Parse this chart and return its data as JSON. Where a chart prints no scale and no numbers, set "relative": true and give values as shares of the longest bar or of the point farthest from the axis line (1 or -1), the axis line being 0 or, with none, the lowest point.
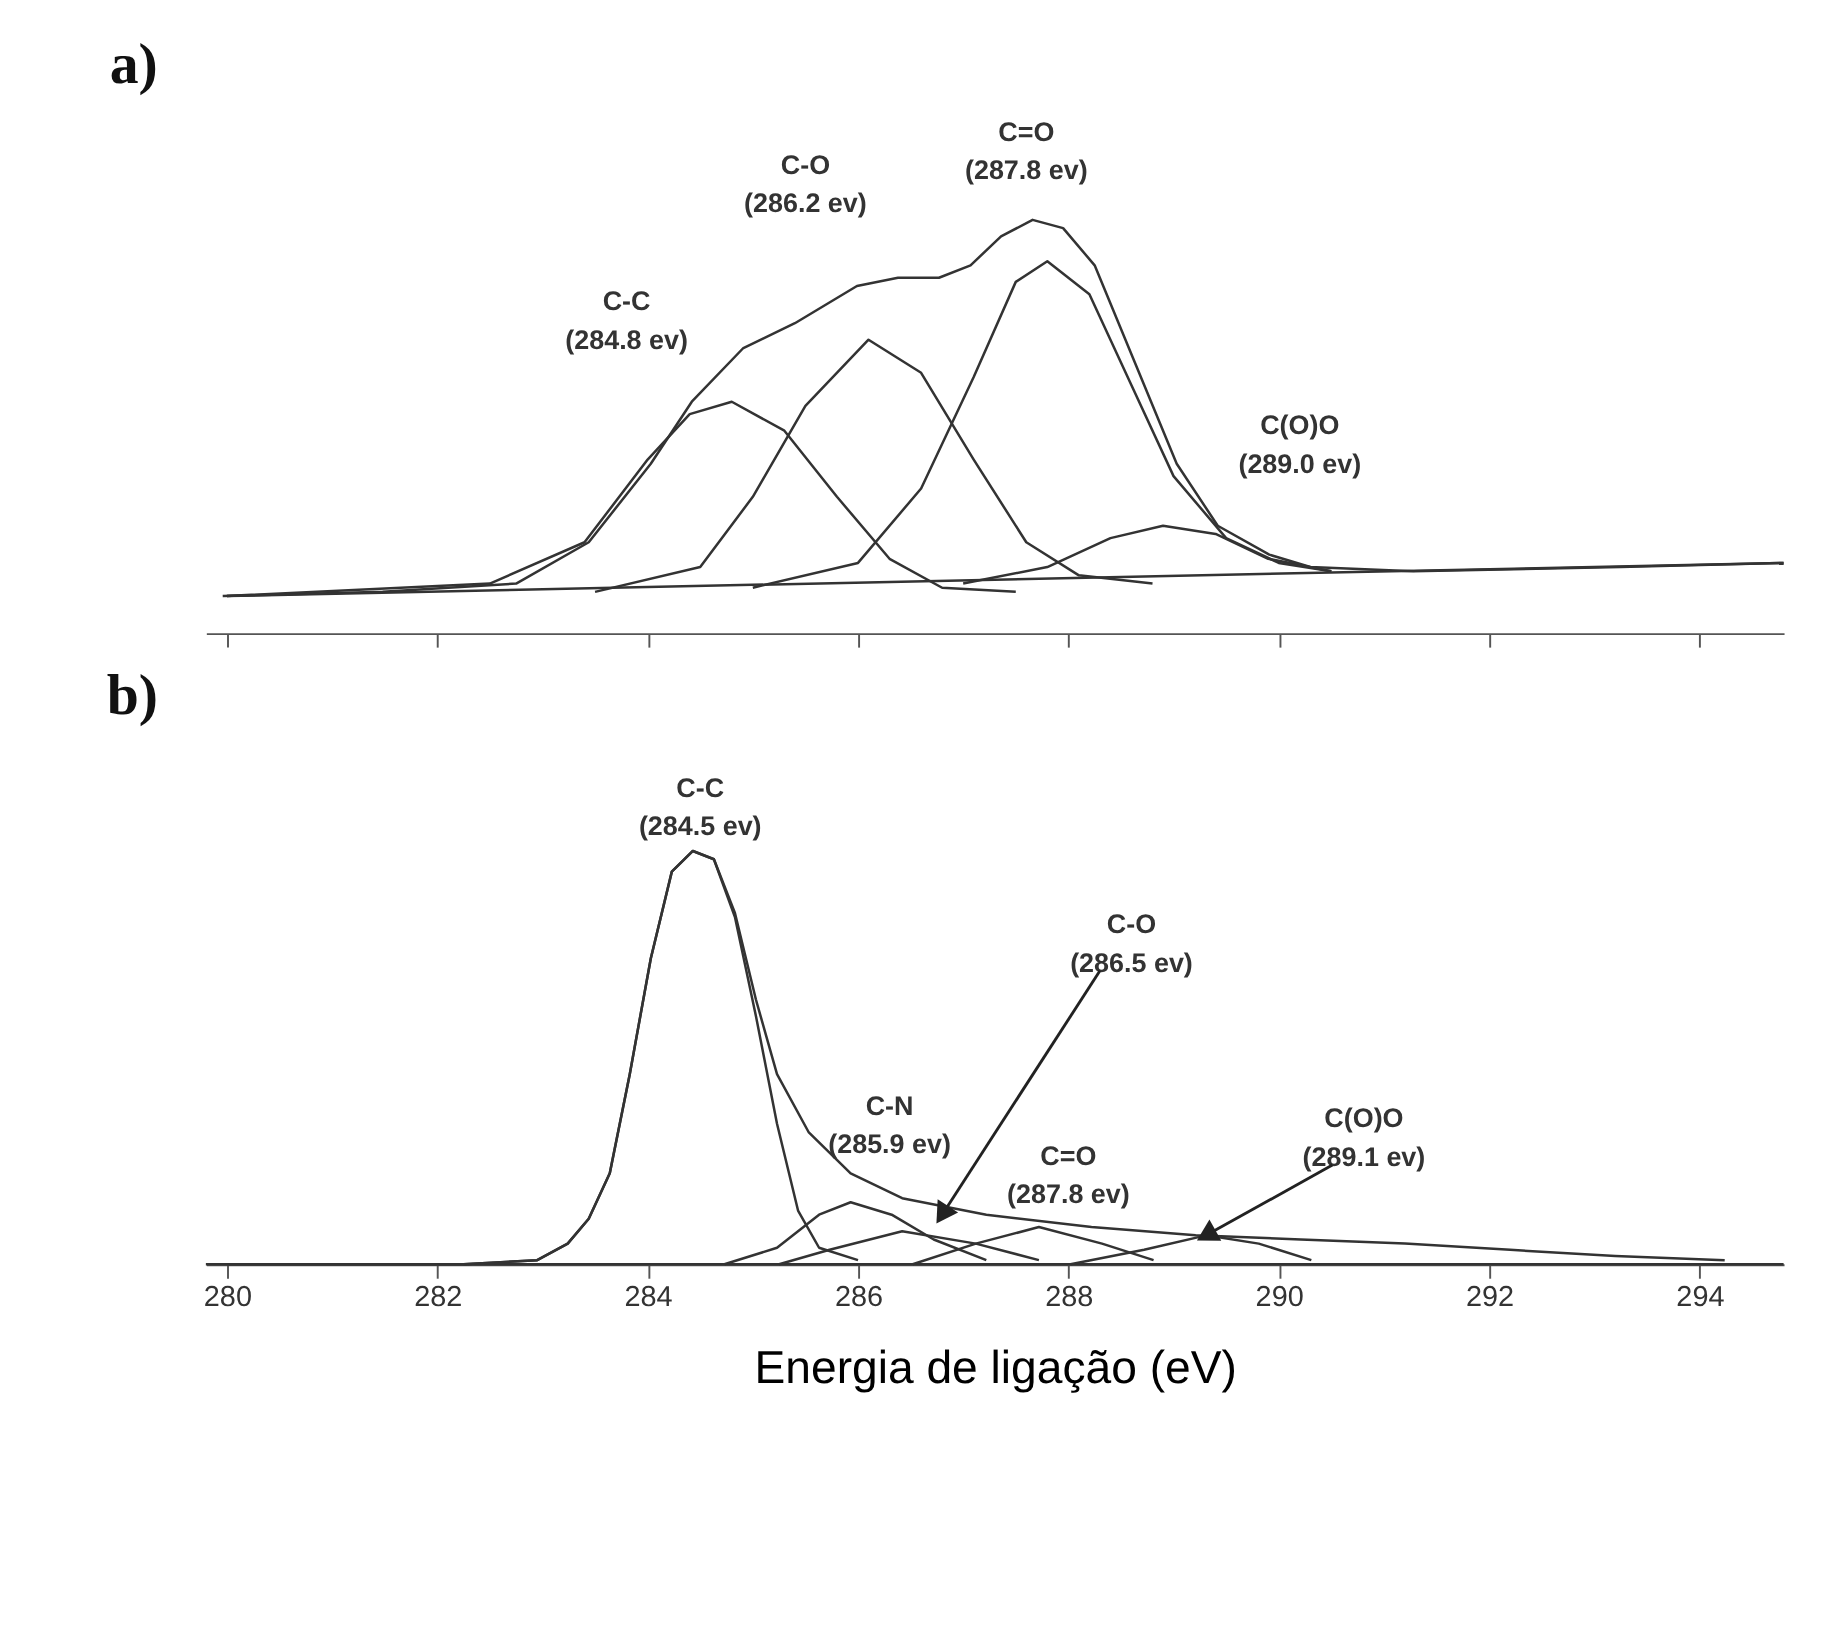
{
  "chart_data": [
    {
      "type": "line",
      "title": "a)",
      "relative": true,
      "grid": false,
      "tick_labels": false,
      "xlim": [
        279.8,
        294.8
      ],
      "xticks": [
        {
          "value": 280,
          "label": null
        },
        {
          "value": 282,
          "label": null
        },
        {
          "value": 284,
          "label": null
        },
        {
          "value": 286,
          "label": null
        },
        {
          "value": 288,
          "label": null
        },
        {
          "value": 290,
          "label": null
        },
        {
          "value": 292,
          "label": null
        },
        {
          "value": 294,
          "label": null
        }
      ],
      "series": [
        {
          "color": "#333333",
          "x": [
            279.96,
            281.48,
            282.75,
            283.44,
            284.03,
            284.42,
            284.91,
            285.4,
            285.99,
            286.38,
            286.77,
            287.07,
            287.36,
            287.66,
            287.95,
            288.25,
            288.64,
            289.03,
            289.42,
            289.91,
            290.3,
            291.28,
            293.25,
            294.8
          ],
          "values": [
            0.09,
            0.1,
            0.12,
            0.22,
            0.41,
            0.56,
            0.69,
            0.75,
            0.84,
            0.86,
            0.86,
            0.89,
            0.96,
            1.0,
            0.98,
            0.89,
            0.65,
            0.41,
            0.26,
            0.19,
            0.16,
            0.15,
            0.16,
            0.17
          ]
        },
        {
          "color": "#333333",
          "x": [
            280.0,
            282.5,
            283.4,
            284.0,
            284.4,
            284.8,
            285.3,
            285.8,
            286.3,
            286.8,
            287.5
          ],
          "values": [
            0.09,
            0.12,
            0.22,
            0.42,
            0.53,
            0.56,
            0.49,
            0.33,
            0.18,
            0.11,
            0.1
          ]
        },
        {
          "color": "#333333",
          "x": [
            283.5,
            284.5,
            285.0,
            285.5,
            286.1,
            286.6,
            287.1,
            287.6,
            288.1,
            288.8
          ],
          "values": [
            0.1,
            0.16,
            0.33,
            0.55,
            0.71,
            0.63,
            0.42,
            0.22,
            0.14,
            0.12
          ]
        },
        {
          "color": "#333333",
          "x": [
            285.0,
            286.0,
            286.6,
            287.1,
            287.5,
            287.8,
            288.2,
            288.6,
            289.0,
            289.5,
            290.0,
            290.5
          ],
          "values": [
            0.11,
            0.17,
            0.35,
            0.62,
            0.85,
            0.9,
            0.82,
            0.6,
            0.38,
            0.23,
            0.17,
            0.15
          ]
        },
        {
          "color": "#333333",
          "x": [
            287.0,
            287.8,
            288.4,
            288.9,
            289.4,
            289.9,
            290.5
          ],
          "values": [
            0.12,
            0.16,
            0.23,
            0.26,
            0.24,
            0.18,
            0.15
          ]
        },
        {
          "color": "#333333",
          "x": [
            280.0,
            294.8
          ],
          "values": [
            0.09,
            0.17
          ]
        }
      ],
      "annotations": [
        "C-C\n(284.8 ev)",
        "C-O\n(286.2 ev)",
        "C=O\n(287.8 ev)",
        "C(O)O\n(289.0 ev)"
      ]
    },
    {
      "type": "line",
      "title": "b)",
      "xlabel": "Energia de ligação (eV)",
      "relative": true,
      "grid": false,
      "tick_labels": "x",
      "xlim": [
        279.8,
        294.8
      ],
      "xticks": [
        280,
        282,
        284,
        286,
        288,
        290,
        292,
        294
      ],
      "series": [
        {
          "color": "#333333",
          "x": [
            280.0,
            282.25,
            282.95,
            283.24,
            283.44,
            283.64,
            283.83,
            284.03,
            284.23,
            284.43,
            284.63,
            284.83,
            285.03,
            285.23,
            285.53,
            285.93,
            286.42,
            287.22,
            288.22,
            289.21,
            290.21,
            291.2,
            292.2,
            293.2,
            294.24
          ],
          "values": [
            0,
            0.0,
            0.01,
            0.05,
            0.11,
            0.22,
            0.46,
            0.74,
            0.95,
            1.0,
            0.98,
            0.85,
            0.64,
            0.46,
            0.32,
            0.22,
            0.16,
            0.12,
            0.09,
            0.07,
            0.06,
            0.05,
            0.035,
            0.02,
            0.01
          ]
        },
        {
          "color": "#333333",
          "x": [
            282.25,
            282.95,
            283.24,
            283.44,
            283.64,
            283.83,
            284.03,
            284.23,
            284.43,
            284.63,
            284.83,
            285.03,
            285.23,
            285.43,
            285.63,
            286.0
          ],
          "values": [
            0.0,
            0.01,
            0.05,
            0.11,
            0.22,
            0.46,
            0.74,
            0.95,
            1.0,
            0.98,
            0.84,
            0.6,
            0.34,
            0.13,
            0.04,
            0.01
          ]
        },
        {
          "color": "#333333",
          "x": [
            284.73,
            285.23,
            285.63,
            285.93,
            286.32,
            286.72,
            287.22
          ],
          "values": [
            0,
            0.04,
            0.12,
            0.15,
            0.12,
            0.06,
            0.01
          ]
        },
        {
          "color": "#333333",
          "x": [
            285.25,
            285.73,
            286.42,
            287.12,
            287.72
          ],
          "values": [
            0,
            0.035,
            0.08,
            0.05,
            0.01
          ]
        },
        {
          "color": "#333333",
          "x": [
            286.52,
            287.12,
            287.72,
            288.32,
            288.81
          ],
          "values": [
            0,
            0.05,
            0.09,
            0.05,
            0.01
          ]
        },
        {
          "color": "#333333",
          "x": [
            288.02,
            288.72,
            289.31,
            289.81,
            290.31
          ],
          "values": [
            0,
            0.035,
            0.07,
            0.05,
            0.01
          ]
        },
        {
          "color": "#333333",
          "x": [
            279.8,
            294.8
          ],
          "values": [
            0,
            0
          ]
        }
      ],
      "annotations": [
        {
          "text": "C-C\n(284.5 ev)",
          "x": 284.5,
          "y": 1.0
        },
        "C-N\n(285.9 ev)",
        {
          "text": "C-O\n(286.5 ev)",
          "x": 286.8,
          "y": 0.12
        },
        {
          "text": "C=O\n(287.8 ev)",
          "x": 287.8,
          "y": 0.09
        },
        {
          "text": "C(O)O\n(289.1 ev)",
          "x": 289.31,
          "y": 0.07
        }
      ]
    }
  ]
}
